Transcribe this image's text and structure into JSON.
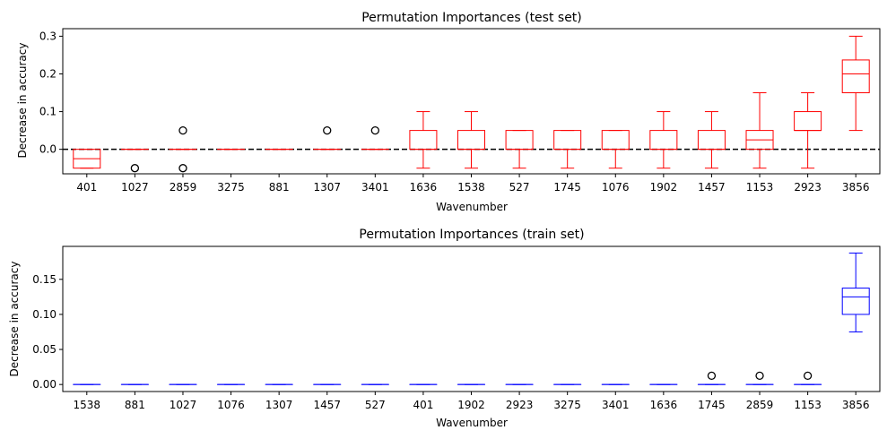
{
  "chart_data": [
    {
      "type": "box",
      "title": "Permutation Importances (test set)",
      "xlabel": "Wavenumber",
      "ylabel": "Decrease in accuracy",
      "ylim": [
        -0.065,
        0.32
      ],
      "yticks": [
        0.0,
        0.1,
        0.2,
        0.3
      ],
      "ytick_labels": [
        "0.0",
        "0.1",
        "0.2",
        "0.3"
      ],
      "color": "#ff0000",
      "reference_line": {
        "y": 0.0,
        "style": "dashed",
        "color": "#000000"
      },
      "categories": [
        "401",
        "1027",
        "2859",
        "3275",
        "881",
        "1307",
        "3401",
        "1636",
        "1538",
        "527",
        "1745",
        "1076",
        "1902",
        "1457",
        "1153",
        "2923",
        "3856"
      ],
      "boxes": [
        {
          "whislo": -0.05,
          "q1": -0.05,
          "med": -0.025,
          "q3": 0.0,
          "whishi": 0.0,
          "fliers": []
        },
        {
          "whislo": 0.0,
          "q1": 0.0,
          "med": 0.0,
          "q3": 0.0,
          "whishi": 0.0,
          "fliers": [
            -0.05
          ]
        },
        {
          "whislo": 0.0,
          "q1": 0.0,
          "med": 0.0,
          "q3": 0.0,
          "whishi": 0.0,
          "fliers": [
            0.05,
            -0.05
          ]
        },
        {
          "whislo": 0.0,
          "q1": 0.0,
          "med": 0.0,
          "q3": 0.0,
          "whishi": 0.0,
          "fliers": []
        },
        {
          "whislo": 0.0,
          "q1": 0.0,
          "med": 0.0,
          "q3": 0.0,
          "whishi": 0.0,
          "fliers": []
        },
        {
          "whislo": 0.0,
          "q1": 0.0,
          "med": 0.0,
          "q3": 0.0,
          "whishi": 0.0,
          "fliers": [
            0.05
          ]
        },
        {
          "whislo": 0.0,
          "q1": 0.0,
          "med": 0.0,
          "q3": 0.0,
          "whishi": 0.0,
          "fliers": [
            0.05
          ]
        },
        {
          "whislo": -0.05,
          "q1": 0.0,
          "med": 0.0,
          "q3": 0.05,
          "whishi": 0.1,
          "fliers": []
        },
        {
          "whislo": -0.05,
          "q1": 0.0,
          "med": 0.0,
          "q3": 0.05,
          "whishi": 0.1,
          "fliers": []
        },
        {
          "whislo": -0.05,
          "q1": 0.0,
          "med": 0.0,
          "q3": 0.05,
          "whishi": 0.05,
          "fliers": []
        },
        {
          "whislo": -0.05,
          "q1": 0.0,
          "med": 0.0,
          "q3": 0.05,
          "whishi": 0.05,
          "fliers": []
        },
        {
          "whislo": -0.05,
          "q1": 0.0,
          "med": 0.0,
          "q3": 0.05,
          "whishi": 0.05,
          "fliers": []
        },
        {
          "whislo": -0.05,
          "q1": 0.0,
          "med": 0.0,
          "q3": 0.05,
          "whishi": 0.1,
          "fliers": []
        },
        {
          "whislo": -0.05,
          "q1": 0.0,
          "med": 0.0,
          "q3": 0.05,
          "whishi": 0.1,
          "fliers": []
        },
        {
          "whislo": -0.05,
          "q1": 0.0,
          "med": 0.025,
          "q3": 0.05,
          "whishi": 0.15,
          "fliers": []
        },
        {
          "whislo": -0.05,
          "q1": 0.05,
          "med": 0.05,
          "q3": 0.1,
          "whishi": 0.15,
          "fliers": []
        },
        {
          "whislo": 0.05,
          "q1": 0.15,
          "med": 0.2,
          "q3": 0.237,
          "whishi": 0.3,
          "fliers": []
        }
      ]
    },
    {
      "type": "box",
      "title": "Permutation Importances (train set)",
      "xlabel": "Wavenumber",
      "ylabel": "Decrease in accuracy",
      "ylim": [
        -0.01,
        0.197
      ],
      "yticks": [
        0.0,
        0.05,
        0.1,
        0.15
      ],
      "ytick_labels": [
        "0.00",
        "0.05",
        "0.10",
        "0.15"
      ],
      "color": "#0000ff",
      "categories": [
        "1538",
        "881",
        "1027",
        "1076",
        "1307",
        "1457",
        "527",
        "401",
        "1902",
        "2923",
        "3275",
        "3401",
        "1636",
        "1745",
        "2859",
        "1153",
        "3856"
      ],
      "boxes": [
        {
          "whislo": 0.0,
          "q1": 0.0,
          "med": 0.0,
          "q3": 0.0,
          "whishi": 0.0,
          "fliers": []
        },
        {
          "whislo": 0.0,
          "q1": 0.0,
          "med": 0.0,
          "q3": 0.0,
          "whishi": 0.0,
          "fliers": []
        },
        {
          "whislo": 0.0,
          "q1": 0.0,
          "med": 0.0,
          "q3": 0.0,
          "whishi": 0.0,
          "fliers": []
        },
        {
          "whislo": 0.0,
          "q1": 0.0,
          "med": 0.0,
          "q3": 0.0,
          "whishi": 0.0,
          "fliers": []
        },
        {
          "whislo": 0.0,
          "q1": 0.0,
          "med": 0.0,
          "q3": 0.0,
          "whishi": 0.0,
          "fliers": []
        },
        {
          "whislo": 0.0,
          "q1": 0.0,
          "med": 0.0,
          "q3": 0.0,
          "whishi": 0.0,
          "fliers": []
        },
        {
          "whislo": 0.0,
          "q1": 0.0,
          "med": 0.0,
          "q3": 0.0,
          "whishi": 0.0,
          "fliers": []
        },
        {
          "whislo": 0.0,
          "q1": 0.0,
          "med": 0.0,
          "q3": 0.0,
          "whishi": 0.0,
          "fliers": []
        },
        {
          "whislo": 0.0,
          "q1": 0.0,
          "med": 0.0,
          "q3": 0.0,
          "whishi": 0.0,
          "fliers": []
        },
        {
          "whislo": 0.0,
          "q1": 0.0,
          "med": 0.0,
          "q3": 0.0,
          "whishi": 0.0,
          "fliers": []
        },
        {
          "whislo": 0.0,
          "q1": 0.0,
          "med": 0.0,
          "q3": 0.0,
          "whishi": 0.0,
          "fliers": []
        },
        {
          "whislo": 0.0,
          "q1": 0.0,
          "med": 0.0,
          "q3": 0.0,
          "whishi": 0.0,
          "fliers": []
        },
        {
          "whislo": 0.0,
          "q1": 0.0,
          "med": 0.0,
          "q3": 0.0,
          "whishi": 0.0,
          "fliers": []
        },
        {
          "whislo": 0.0,
          "q1": 0.0,
          "med": 0.0,
          "q3": 0.0,
          "whishi": 0.0,
          "fliers": [
            0.0125
          ]
        },
        {
          "whislo": 0.0,
          "q1": 0.0,
          "med": 0.0,
          "q3": 0.0,
          "whishi": 0.0,
          "fliers": [
            0.0125
          ]
        },
        {
          "whislo": 0.0,
          "q1": 0.0,
          "med": 0.0,
          "q3": 0.0,
          "whishi": 0.0,
          "fliers": [
            0.0125
          ]
        },
        {
          "whislo": 0.075,
          "q1": 0.1,
          "med": 0.125,
          "q3": 0.1375,
          "whishi": 0.1875,
          "fliers": []
        }
      ]
    }
  ]
}
